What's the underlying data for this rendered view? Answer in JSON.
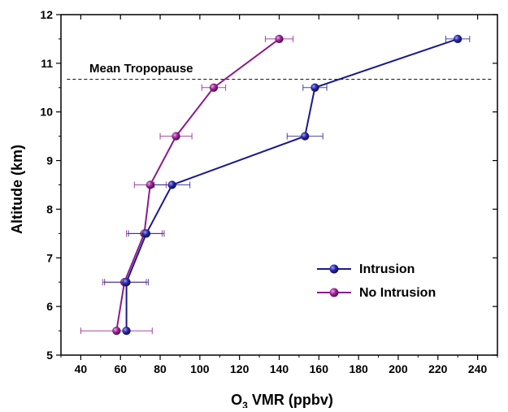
{
  "chart_data": {
    "type": "line",
    "title": "",
    "xlabel_main": "O",
    "xlabel_sub": "3",
    "xlabel_rest": " VMR (ppbv)",
    "ylabel": "Altitude (km)",
    "xlim": [
      30,
      250
    ],
    "ylim": [
      5,
      12
    ],
    "x_ticks": [
      "40",
      "60",
      "80",
      "100",
      "120",
      "140",
      "160",
      "180",
      "200",
      "220",
      "240"
    ],
    "x_tick_values": [
      40,
      60,
      80,
      100,
      120,
      140,
      160,
      180,
      200,
      220,
      240
    ],
    "y_ticks": [
      "5",
      "6",
      "7",
      "8",
      "9",
      "10",
      "11",
      "12"
    ],
    "y_tick_values": [
      5,
      6,
      7,
      8,
      9,
      10,
      11,
      12
    ],
    "annotation": {
      "text": "Mean Tropopause",
      "y": 10.67
    },
    "legend_position": "bottom-right",
    "series": [
      {
        "name": "Intrusion",
        "color": "#1a1a8c",
        "points": [
          {
            "x": 63,
            "y": 5.5,
            "err": 0
          },
          {
            "x": 63,
            "y": 6.5,
            "err": 11
          },
          {
            "x": 73,
            "y": 7.5,
            "err": 9
          },
          {
            "x": 86,
            "y": 8.5,
            "err": 9
          },
          {
            "x": 153,
            "y": 9.5,
            "err": 9
          },
          {
            "x": 158,
            "y": 10.5,
            "err": 6
          },
          {
            "x": 230,
            "y": 11.5,
            "err": 6
          }
        ]
      },
      {
        "name": "No Intrusion",
        "color": "#8e1a8c",
        "points": [
          {
            "x": 58,
            "y": 5.5,
            "err": 18
          },
          {
            "x": 62,
            "y": 6.5,
            "err": 11
          },
          {
            "x": 72,
            "y": 7.5,
            "err": 9
          },
          {
            "x": 75,
            "y": 8.5,
            "err": 8
          },
          {
            "x": 88,
            "y": 9.5,
            "err": 8
          },
          {
            "x": 107,
            "y": 10.5,
            "err": 6
          },
          {
            "x": 140,
            "y": 11.5,
            "err": 7
          }
        ]
      }
    ]
  }
}
